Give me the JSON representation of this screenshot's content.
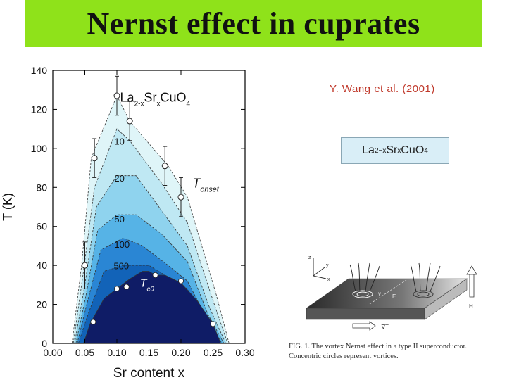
{
  "slide": {
    "title": "Nernst effect in cuprates"
  },
  "citation": "Y. Wang et al. (2001)",
  "formula": {
    "base": "La",
    "sub": "2−x",
    "rest": "Sr",
    "sub2": "x",
    "tail": "CuO",
    "sub3": "4"
  },
  "figure": {
    "caption_line1": "FIG. 1. The vortex Nernst effect in a type II superconductor.",
    "caption_line2": "Concentric circles represent vortices.",
    "labels": {
      "field": "H",
      "efield": "E",
      "grad": "−∇T",
      "v": "v",
      "z": "z",
      "y": "y",
      "x": "x"
    }
  },
  "chart_data": {
    "type": "area",
    "xlabel": "Sr content  x",
    "ylabel": "T (K)",
    "xlim": [
      0.0,
      0.3
    ],
    "ylim": [
      0,
      140
    ],
    "xticks": [
      0.0,
      0.05,
      0.1,
      0.15,
      0.2,
      0.25,
      0.3
    ],
    "yticks": [
      0,
      20,
      40,
      60,
      80,
      100,
      120,
      140
    ],
    "inset_title": {
      "main": "La",
      "sub1": "2-x",
      "mid": "Sr",
      "sub2": "x",
      "tail": "CuO",
      "sub3": "4"
    },
    "contour_labels": [
      "10",
      "20",
      "50",
      "100",
      "500"
    ],
    "onset_label": {
      "main": "T",
      "sub": "onset"
    },
    "tc_label": {
      "main": "T",
      "sub": "c0"
    },
    "fill_colors": [
      "#dff5f8",
      "#bfe8f3",
      "#8fd3ee",
      "#56b3e6",
      "#2a86d4",
      "#1263b8",
      "#0f1c66"
    ],
    "layers": [
      {
        "name": "onset",
        "points": [
          [
            0.03,
            0
          ],
          [
            0.045,
            40
          ],
          [
            0.06,
            95
          ],
          [
            0.1,
            127
          ],
          [
            0.12,
            114
          ],
          [
            0.18,
            91
          ],
          [
            0.21,
            75
          ],
          [
            0.255,
            25
          ],
          [
            0.275,
            0
          ]
        ]
      },
      {
        "name": "10",
        "points": [
          [
            0.032,
            0
          ],
          [
            0.047,
            35
          ],
          [
            0.065,
            80
          ],
          [
            0.1,
            110
          ],
          [
            0.12,
            104
          ],
          [
            0.17,
            82
          ],
          [
            0.21,
            62
          ],
          [
            0.25,
            22
          ],
          [
            0.273,
            0
          ]
        ]
      },
      {
        "name": "20",
        "points": [
          [
            0.034,
            0
          ],
          [
            0.05,
            30
          ],
          [
            0.068,
            70
          ],
          [
            0.1,
            86
          ],
          [
            0.13,
            86
          ],
          [
            0.17,
            68
          ],
          [
            0.21,
            50
          ],
          [
            0.245,
            18
          ],
          [
            0.27,
            0
          ]
        ]
      },
      {
        "name": "50",
        "points": [
          [
            0.036,
            0
          ],
          [
            0.052,
            25
          ],
          [
            0.07,
            58
          ],
          [
            0.1,
            66
          ],
          [
            0.13,
            66
          ],
          [
            0.17,
            56
          ],
          [
            0.21,
            42
          ],
          [
            0.242,
            15
          ],
          [
            0.267,
            0
          ]
        ]
      },
      {
        "name": "100",
        "points": [
          [
            0.038,
            0
          ],
          [
            0.053,
            20
          ],
          [
            0.075,
            48
          ],
          [
            0.11,
            54
          ],
          [
            0.14,
            50
          ],
          [
            0.18,
            40
          ],
          [
            0.21,
            32
          ],
          [
            0.24,
            13
          ],
          [
            0.264,
            0
          ]
        ]
      },
      {
        "name": "500",
        "points": [
          [
            0.04,
            0
          ],
          [
            0.055,
            15
          ],
          [
            0.08,
            37
          ],
          [
            0.11,
            40
          ],
          [
            0.15,
            40
          ],
          [
            0.18,
            34
          ],
          [
            0.21,
            28
          ],
          [
            0.238,
            10
          ],
          [
            0.262,
            0
          ]
        ]
      },
      {
        "name": "Tc0",
        "points": [
          [
            0.048,
            0
          ],
          [
            0.058,
            10
          ],
          [
            0.08,
            23
          ],
          [
            0.1,
            28
          ],
          [
            0.12,
            33
          ],
          [
            0.14,
            37
          ],
          [
            0.15,
            37
          ],
          [
            0.16,
            35
          ],
          [
            0.175,
            35
          ],
          [
            0.2,
            31
          ],
          [
            0.225,
            22
          ],
          [
            0.25,
            10
          ],
          [
            0.262,
            0
          ]
        ]
      }
    ],
    "onset_markers": [
      {
        "x": 0.05,
        "y": 40,
        "err": 12
      },
      {
        "x": 0.065,
        "y": 95,
        "err": 10
      },
      {
        "x": 0.1,
        "y": 127,
        "err": 10
      },
      {
        "x": 0.12,
        "y": 114,
        "err": 10
      },
      {
        "x": 0.175,
        "y": 91,
        "err": 10
      },
      {
        "x": 0.2,
        "y": 75,
        "err": 10
      }
    ],
    "tc_markers": [
      {
        "x": 0.063,
        "y": 11
      },
      {
        "x": 0.1,
        "y": 28
      },
      {
        "x": 0.115,
        "y": 29
      },
      {
        "x": 0.16,
        "y": 35
      },
      {
        "x": 0.2,
        "y": 32
      },
      {
        "x": 0.25,
        "y": 10
      }
    ]
  }
}
